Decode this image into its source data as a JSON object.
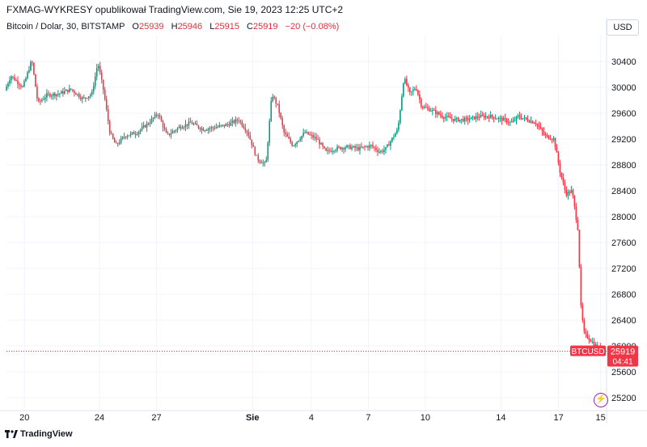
{
  "header": {
    "publisher": "FXMAG-WYKRESY opublikował TradingView.com, Sie 19, 2023 12:25 UTC+2"
  },
  "legend": {
    "symbol": "Bitcoin / Dolar, 30, BITSTAMP",
    "o_label": "O",
    "o_value": "25939",
    "h_label": "H",
    "h_value": "25946",
    "l_label": "L",
    "l_value": "25915",
    "c_label": "C",
    "c_value": "25919",
    "change": "−20 (−0.08%)"
  },
  "currency_button": "USD",
  "footer": {
    "brand": "TradingView"
  },
  "colors": {
    "up": "#089981",
    "down": "#f23645",
    "price_label": "#f23645",
    "grid": "#f0f3fa"
  },
  "chart_data": {
    "type": "candlestick",
    "symbol": "BTCUSD",
    "ylim": [
      25000,
      30800
    ],
    "y_ticks": [
      25200,
      25600,
      26000,
      26400,
      26800,
      27200,
      27600,
      28000,
      28400,
      28800,
      29200,
      29600,
      30000,
      30400
    ],
    "x_ticks": [
      {
        "label": "20",
        "pos": 0.03
      },
      {
        "label": "24",
        "pos": 0.155
      },
      {
        "label": "27",
        "pos": 0.25
      },
      {
        "label": "Sie",
        "pos": 0.41
      },
      {
        "label": "4",
        "pos": 0.508
      },
      {
        "label": "7",
        "pos": 0.603
      },
      {
        "label": "10",
        "pos": 0.698
      },
      {
        "label": "14",
        "pos": 0.824
      },
      {
        "label": "17",
        "pos": 0.92
      },
      {
        "label": "15",
        "pos": 0.99
      }
    ],
    "last_price": 25919,
    "last_price_label": "BTCUSD",
    "last_price_value": "25919",
    "countdown": "04:41",
    "grid": true,
    "path_points": [
      [
        0.0,
        29950
      ],
      [
        0.01,
        30180
      ],
      [
        0.03,
        30000
      ],
      [
        0.045,
        30420
      ],
      [
        0.055,
        29750
      ],
      [
        0.07,
        29880
      ],
      [
        0.09,
        29900
      ],
      [
        0.11,
        29970
      ],
      [
        0.13,
        29820
      ],
      [
        0.145,
        29900
      ],
      [
        0.155,
        30380
      ],
      [
        0.165,
        29920
      ],
      [
        0.175,
        29300
      ],
      [
        0.185,
        29100
      ],
      [
        0.2,
        29250
      ],
      [
        0.22,
        29300
      ],
      [
        0.24,
        29450
      ],
      [
        0.255,
        29600
      ],
      [
        0.27,
        29250
      ],
      [
        0.29,
        29380
      ],
      [
        0.31,
        29450
      ],
      [
        0.33,
        29350
      ],
      [
        0.35,
        29380
      ],
      [
        0.37,
        29420
      ],
      [
        0.39,
        29500
      ],
      [
        0.405,
        29300
      ],
      [
        0.42,
        28900
      ],
      [
        0.435,
        28800
      ],
      [
        0.445,
        29900
      ],
      [
        0.455,
        29700
      ],
      [
        0.465,
        29300
      ],
      [
        0.48,
        29100
      ],
      [
        0.5,
        29300
      ],
      [
        0.52,
        29200
      ],
      [
        0.535,
        29000
      ],
      [
        0.55,
        29050
      ],
      [
        0.57,
        29080
      ],
      [
        0.59,
        29050
      ],
      [
        0.61,
        29100
      ],
      [
        0.625,
        29000
      ],
      [
        0.635,
        29050
      ],
      [
        0.645,
        29200
      ],
      [
        0.655,
        29350
      ],
      [
        0.665,
        30150
      ],
      [
        0.675,
        29900
      ],
      [
        0.685,
        30000
      ],
      [
        0.695,
        29700
      ],
      [
        0.71,
        29650
      ],
      [
        0.73,
        29550
      ],
      [
        0.75,
        29500
      ],
      [
        0.77,
        29500
      ],
      [
        0.79,
        29550
      ],
      [
        0.81,
        29550
      ],
      [
        0.83,
        29500
      ],
      [
        0.845,
        29450
      ],
      [
        0.855,
        29550
      ],
      [
        0.87,
        29500
      ],
      [
        0.885,
        29450
      ],
      [
        0.9,
        29250
      ],
      [
        0.915,
        29200
      ],
      [
        0.925,
        28700
      ],
      [
        0.935,
        28350
      ],
      [
        0.945,
        28400
      ],
      [
        0.955,
        27800
      ],
      [
        0.96,
        26600
      ],
      [
        0.965,
        26200
      ],
      [
        0.975,
        26100
      ],
      [
        0.985,
        26000
      ],
      [
        0.995,
        25919
      ]
    ]
  }
}
